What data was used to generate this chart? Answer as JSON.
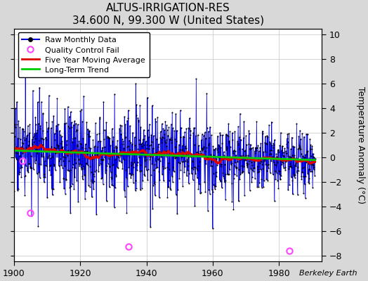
{
  "title": "ALTUS-IRRIGATION-RES",
  "subtitle": "34.600 N, 99.300 W (United States)",
  "ylabel": "Temperature Anomaly (°C)",
  "attribution": "Berkeley Earth",
  "xlim": [
    1900,
    1993
  ],
  "ylim": [
    -8.5,
    10.5
  ],
  "yticks": [
    -8,
    -6,
    -4,
    -2,
    0,
    2,
    4,
    6,
    8,
    10
  ],
  "xticks": [
    1900,
    1920,
    1940,
    1960,
    1980
  ],
  "fig_bg_color": "#d8d8d8",
  "plot_bg_color": "#ffffff",
  "raw_color": "#0000dd",
  "moving_avg_color": "#dd0000",
  "trend_color": "#00cc00",
  "qc_fail_color": "#ff44ff",
  "seed": 17,
  "qc_fail_times": [
    1902.5,
    1904.8,
    1934.5,
    1983.2
  ],
  "qc_fail_vals": [
    -0.3,
    -4.5,
    -7.3,
    -7.6
  ]
}
